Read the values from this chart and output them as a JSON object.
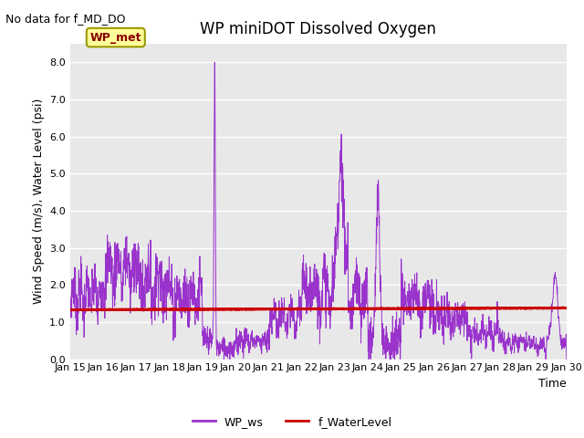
{
  "title": "WP miniDOT Dissolved Oxygen",
  "xlabel": "Time",
  "ylabel": "Wind Speed (m/s), Water Level (psi)",
  "no_data_text": "No data for f_MD_DO",
  "annotation_text": "WP_met",
  "ylim": [
    0.0,
    8.5
  ],
  "yticks": [
    0.0,
    1.0,
    2.0,
    3.0,
    4.0,
    5.0,
    6.0,
    7.0,
    8.0
  ],
  "xtick_labels": [
    "Jan 15",
    "Jan 16",
    "Jan 17",
    "Jan 18",
    "Jan 19",
    "Jan 20",
    "Jan 21",
    "Jan 22",
    "Jan 23",
    "Jan 24",
    "Jan 25",
    "Jan 26",
    "Jan 27",
    "Jan 28",
    "Jan 29",
    "Jan 30"
  ],
  "ws_color": "#9933CC",
  "wl_color": "#CC0000",
  "legend_ws": "WP_ws",
  "legend_wl": "f_WaterLevel",
  "background_color": "#E8E8E8",
  "annotation_bg": "#FFFF99",
  "annotation_border": "#999900",
  "annotation_text_color": "#880000",
  "title_fontsize": 12,
  "axis_fontsize": 9,
  "tick_fontsize": 8
}
